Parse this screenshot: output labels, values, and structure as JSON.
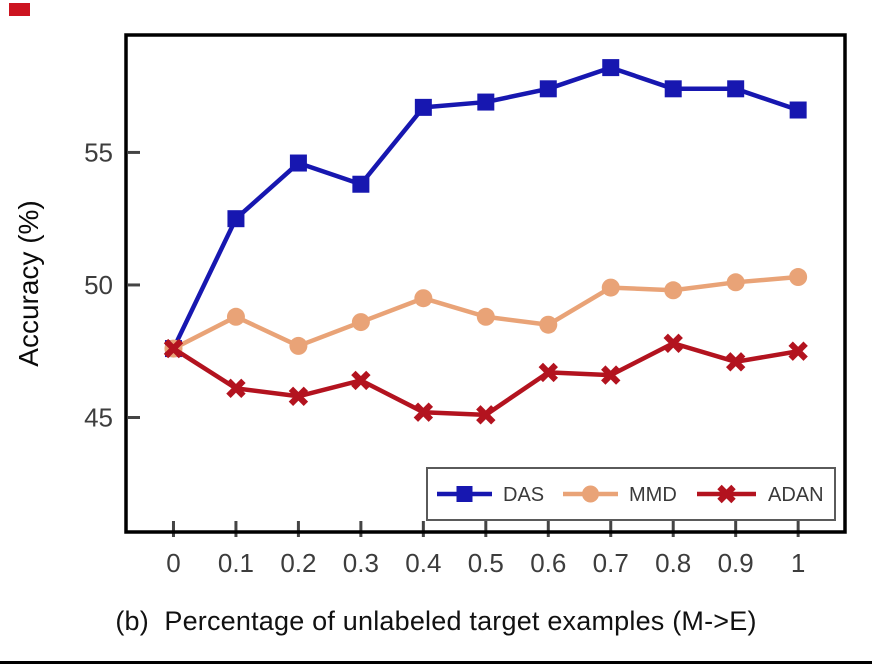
{
  "figure": {
    "caption": "(b)  Percentage of unlabeled target examples (M->E)",
    "corner_mark_color": "#cc1420",
    "bottom_rule_color": "#000000",
    "frame_color": "#000000",
    "tick_color": "#444444",
    "tick_label_color": "#3d3d3d",
    "legend_text_color": "#3a3a3a",
    "legend_border_color": "#5a5a5a",
    "axis_label_color": "#0a0a0a"
  },
  "chart_data": {
    "type": "line",
    "title": "",
    "xlabel": "",
    "ylabel": "Accuracy (%)",
    "x": [
      0,
      0.1,
      0.2,
      0.3,
      0.4,
      0.5,
      0.6,
      0.7,
      0.8,
      0.9,
      1
    ],
    "xtick_labels": [
      "0",
      "0.1",
      "0.2",
      "0.3",
      "0.4",
      "0.5",
      "0.6",
      "0.7",
      "0.8",
      "0.9",
      "1"
    ],
    "yticks": [
      45,
      50,
      55
    ],
    "ytick_labels": [
      "45",
      "50",
      "55"
    ],
    "xlim": [
      -0.076,
      1.075
    ],
    "ylim": [
      40.68,
      59.43
    ],
    "grid": false,
    "legend_position": "lower-right-inside",
    "series": [
      {
        "name": "DAS",
        "color": "#1717b0",
        "marker": "square",
        "values": [
          47.6,
          52.5,
          54.6,
          53.8,
          56.7,
          56.9,
          57.4,
          58.2,
          57.4,
          57.4,
          56.6
        ]
      },
      {
        "name": "MMD",
        "color": "#e9a377",
        "marker": "circle",
        "values": [
          47.6,
          48.8,
          47.7,
          48.6,
          49.5,
          48.8,
          48.5,
          49.9,
          49.8,
          50.1,
          50.3
        ]
      },
      {
        "name": "ADAN",
        "color": "#b3131f",
        "marker": "x",
        "values": [
          47.6,
          46.1,
          45.8,
          46.4,
          45.2,
          45.1,
          46.7,
          46.6,
          47.8,
          47.1,
          47.5
        ]
      }
    ]
  }
}
